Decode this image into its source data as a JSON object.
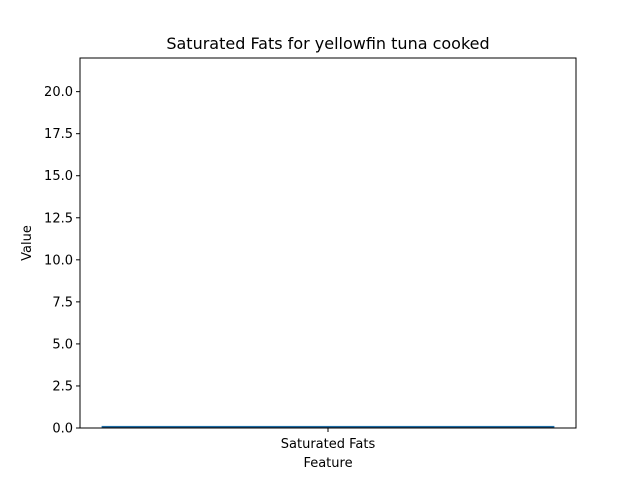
{
  "chart_data": {
    "type": "bar",
    "title": "Saturated Fats for yellowfin tuna cooked",
    "xlabel": "Feature",
    "ylabel": "Value",
    "categories": [
      "Saturated Fats"
    ],
    "values": [
      0.1
    ],
    "ylim": [
      0,
      22
    ],
    "yticks": [
      0.0,
      2.5,
      5.0,
      7.5,
      10.0,
      12.5,
      15.0,
      17.5,
      20.0
    ],
    "ytick_labels": [
      "0.0",
      "2.5",
      "5.0",
      "7.5",
      "10.0",
      "12.5",
      "15.0",
      "17.5",
      "20.0"
    ],
    "grid": false,
    "bar_color": "#1f4e79",
    "bar_edge_color": "#1f77b4"
  }
}
